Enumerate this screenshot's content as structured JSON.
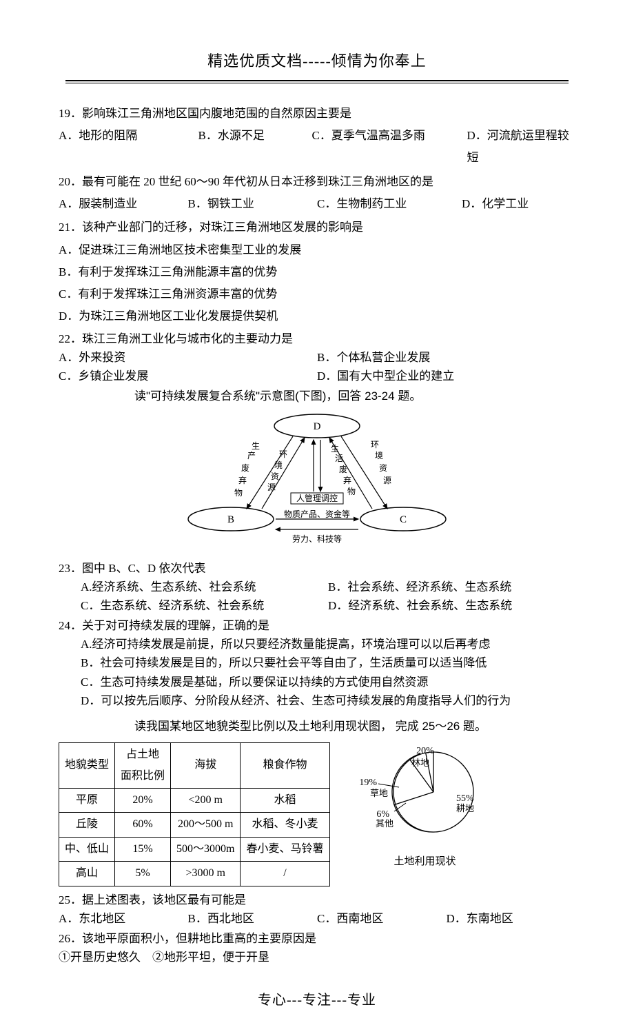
{
  "header": {
    "top_text": "精选优质文档-----倾情为你奉上"
  },
  "questions": {
    "q19": {
      "stem": "19．影响珠江三角洲地区国内腹地范围的自然原因主要是",
      "A": "A．地形的阻隔",
      "B": "B．水源不足",
      "C": "C．夏季气温高温多雨",
      "D": "D．河流航运里程较短"
    },
    "q20": {
      "stem": "20．最有可能在 20 世纪 60～90 年代初从日本迁移到珠江三角洲地区的是",
      "A": "A．服装制造业",
      "B": "B．钢铁工业",
      "C": "C．生物制药工业",
      "D": "D．化学工业"
    },
    "q21": {
      "stem": "21．该种产业部门的迁移，对珠江三角洲地区发展的影响是",
      "A": "A．促进珠江三角洲地区技术密集型工业的发展",
      "B": "B．有利于发挥珠江三角洲能源丰富的优势",
      "C": "C．有利于发挥珠江三角洲资源丰富的优势",
      "D": "D．为珠江三角洲地区工业化发展提供契机"
    },
    "q22": {
      "stem": "22．珠江三角洲工业化与城市化的主要动力是",
      "A": "A．外来投资",
      "B": "B．个体私营企业发展",
      "C": "C．乡镇企业发展",
      "D": "D．国有大中型企业的建立"
    },
    "instr1": "读\"可持续发展复合系统\"示意图(下图)，回答 23-24 题。",
    "diagram": {
      "node_D": "D",
      "node_B": "B",
      "node_C": "C",
      "center_top": "人管理调控",
      "center_mid": "物质产品、资金等",
      "center_bot": "劳力、科技等",
      "edge_DB_L1": "生",
      "edge_DB_L2": "产",
      "edge_DB_L3": "废",
      "edge_DB_L4": "弃",
      "edge_DB_L5": "物",
      "edge_DB_R1": "环",
      "edge_DB_R2": "境",
      "edge_DB_R3": "资",
      "edge_DB_R4": "源",
      "edge_DC_L1": "生",
      "edge_DC_L2": "活",
      "edge_DC_L3": "废",
      "edge_DC_L4": "弃",
      "edge_DC_L5": "物",
      "edge_DC_R1": "环",
      "edge_DC_R2": "境",
      "edge_DC_R3": "资",
      "edge_DC_R4": "源",
      "ellipse_stroke": "#000000",
      "bg": "#ffffff"
    },
    "q23": {
      "stem": "23．图中 B、C、D 依次代表",
      "A": "A.经济系统、生态系统、社会系统",
      "B": "B．社会系统、经济系统、生态系统",
      "C": "C．生态系统、经济系统、社会系统",
      "D": "D．经济系统、社会系统、生态系统"
    },
    "q24": {
      "stem": "24．关于对可持续发展的理解，正确的是",
      "A": "A.经济可持续发展是前提，所以只要经济数量能提高，环境治理可以以后再考虑",
      "B": "B．社会可持续发展是目的，所以只要社会平等自由了，生活质量可以适当降低",
      "C": "C．生态可持续发展是基础，所以要保证以持续的方式使用自然资源",
      "D": "D．可以按先后顺序、分阶段从经济、社会、生态可持续发展的角度指导人们的行为"
    },
    "instr2": "读我国某地区地貌类型比例以及土地利用现状图， 完成 25～26 题。",
    "table": {
      "headers": [
        "地貌类型",
        "占土地\n面积比例",
        "海拔",
        "粮食作物"
      ],
      "rows": [
        [
          "平原",
          "20%",
          "<200 m",
          "水稻"
        ],
        [
          "丘陵",
          "60%",
          "200～500 m",
          "水稻、冬小麦"
        ],
        [
          "中、低山",
          "15%",
          "500～3000m",
          "春小麦、马铃薯"
        ],
        [
          "高山",
          "5%",
          ">3000 m",
          "/"
        ]
      ]
    },
    "pie": {
      "slices": [
        {
          "label": "耕地",
          "pct": 55,
          "color": "#ffffff"
        },
        {
          "label": "林地",
          "pct": 20,
          "color": "#ffffff"
        },
        {
          "label": "草地",
          "pct": 19,
          "color": "#ffffff"
        },
        {
          "label": "其他",
          "pct": 6,
          "color": "#ffffff"
        }
      ],
      "stroke": "#000000",
      "caption": "土地利用现状",
      "label_55": "55%",
      "label_20": "20%",
      "label_19": "19%",
      "label_6": "6%",
      "name_gengdi": "耕地",
      "name_lindi": "林地",
      "name_caodi": "草地",
      "name_qita": "其他"
    },
    "q25": {
      "stem": "25．据上述图表，该地区最有可能是",
      "A": "A．东北地区",
      "B": "B．西北地区",
      "C": "C．西南地区",
      "D": "D．东南地区"
    },
    "q26": {
      "stem": "26．该地平原面积小，但耕地比重高的主要原因是",
      "line2": "①开垦历史悠久　②地形平坦，便于开垦"
    }
  },
  "footer": {
    "text": "专心---专注---专业"
  }
}
